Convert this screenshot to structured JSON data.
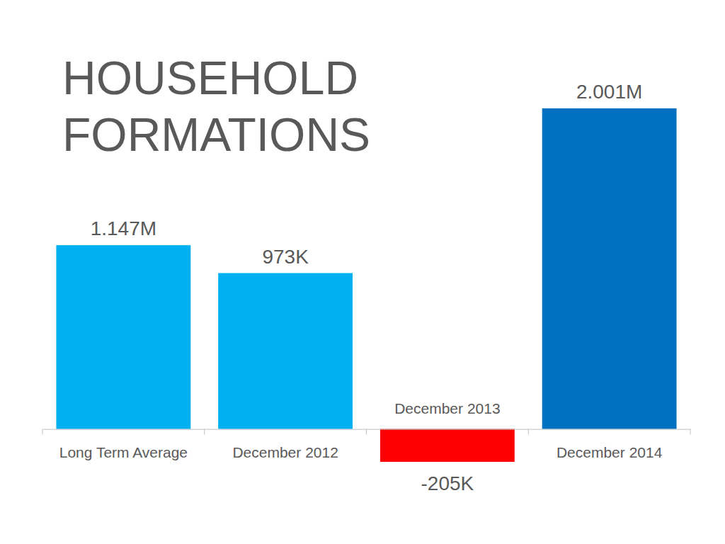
{
  "chart_data": {
    "type": "bar",
    "title": "HOUSEHOLD FORMATIONS",
    "categories": [
      "Long Term Average",
      "December 2012",
      "December 2013",
      "December 2014"
    ],
    "values": [
      1147000,
      973000,
      -205000,
      2001000
    ],
    "value_labels": [
      "1.147M",
      "973K",
      "-205K",
      "2.001M"
    ],
    "colors": [
      "#00b0f0",
      "#00b0f0",
      "#ff0000",
      "#0070c0"
    ],
    "ylim": [
      -205000,
      2001000
    ],
    "data_labels": true,
    "tick_labels": "x"
  }
}
